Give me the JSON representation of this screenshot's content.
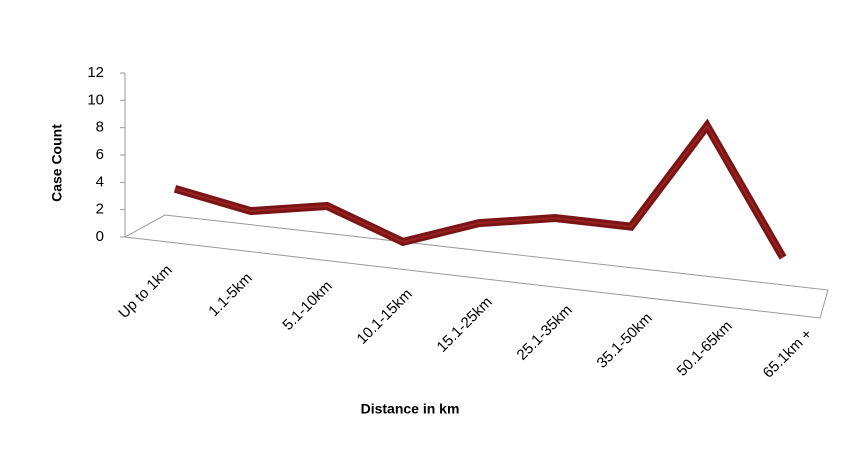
{
  "chart_data": {
    "type": "line",
    "x_label": "Distance in km",
    "y_label": "Case Count",
    "categories": [
      "Up to 1km",
      "1.1-5km",
      "5.1-10km",
      "10.1-15km",
      "15.1-25km",
      "25.1-35km",
      "35.1-50km",
      "50.1-65km",
      "65.1km +"
    ],
    "series": [
      {
        "name": "Case Count",
        "color": "#9b2020",
        "values": [
          2,
          1,
          2,
          0,
          2,
          3,
          3,
          11,
          2
        ]
      }
    ],
    "ylim": [
      0,
      12
    ],
    "yticks": [
      0,
      2,
      4,
      6,
      8,
      10,
      12
    ]
  }
}
